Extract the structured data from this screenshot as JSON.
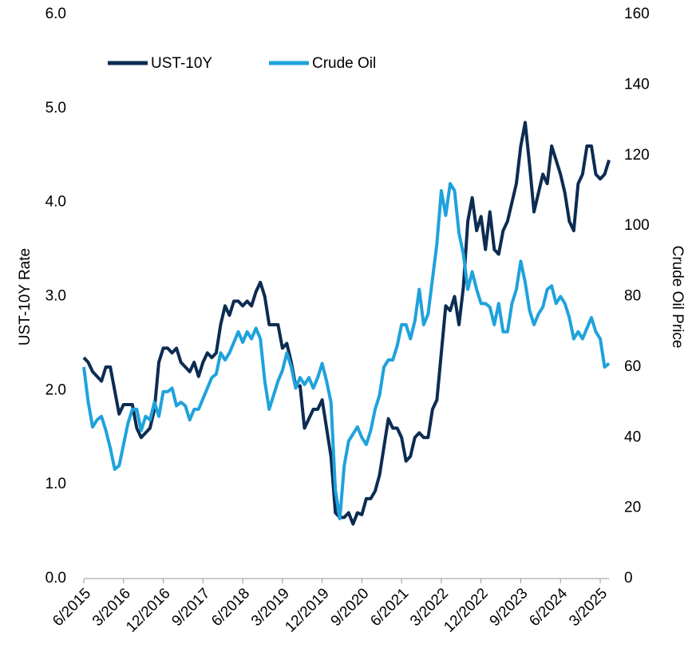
{
  "chart_data": {
    "type": "line",
    "categories": [
      "6/2015",
      null,
      null,
      null,
      null,
      null,
      null,
      null,
      null,
      "3/2016",
      null,
      null,
      null,
      null,
      null,
      null,
      null,
      null,
      "12/2016",
      null,
      null,
      null,
      null,
      null,
      null,
      null,
      null,
      "9/2017",
      null,
      null,
      null,
      null,
      null,
      null,
      null,
      null,
      "6/2018",
      null,
      null,
      null,
      null,
      null,
      null,
      null,
      null,
      "3/2019",
      null,
      null,
      null,
      null,
      null,
      null,
      null,
      null,
      "12/2019",
      null,
      null,
      null,
      null,
      null,
      null,
      null,
      null,
      "9/2020",
      null,
      null,
      null,
      null,
      null,
      null,
      null,
      null,
      "6/2021",
      null,
      null,
      null,
      null,
      null,
      null,
      null,
      null,
      "3/2022",
      null,
      null,
      null,
      null,
      null,
      null,
      null,
      null,
      "12/2022",
      null,
      null,
      null,
      null,
      null,
      null,
      null,
      null,
      "9/2023",
      null,
      null,
      null,
      null,
      null,
      null,
      null,
      null,
      "6/2024",
      null,
      null,
      null,
      null,
      null,
      null,
      null,
      null,
      "3/2025",
      null,
      null
    ],
    "series": [
      {
        "name": "UST-10Y",
        "color": "#0c2c52",
        "values": [
          2.35,
          2.3,
          2.2,
          2.15,
          2.1,
          2.25,
          2.25,
          2.0,
          1.75,
          1.85,
          1.85,
          1.85,
          1.6,
          1.5,
          1.55,
          1.6,
          1.8,
          2.3,
          2.45,
          2.45,
          2.4,
          2.45,
          2.3,
          2.25,
          2.2,
          2.3,
          2.15,
          2.3,
          2.4,
          2.35,
          2.4,
          2.7,
          2.9,
          2.8,
          2.95,
          2.95,
          2.9,
          2.95,
          2.9,
          3.05,
          3.15,
          3.0,
          2.7,
          2.7,
          2.7,
          2.45,
          2.5,
          2.3,
          2.05,
          2.05,
          1.6,
          1.7,
          1.8,
          1.8,
          1.9,
          1.6,
          1.3,
          0.7,
          0.65,
          0.65,
          0.7,
          0.58,
          0.7,
          0.68,
          0.85,
          0.85,
          0.93,
          1.1,
          1.4,
          1.7,
          1.6,
          1.6,
          1.5,
          1.25,
          1.3,
          1.5,
          1.55,
          1.5,
          1.5,
          1.8,
          1.9,
          2.4,
          2.9,
          2.85,
          3.0,
          2.7,
          3.1,
          3.8,
          4.05,
          3.7,
          3.85,
          3.5,
          3.9,
          3.5,
          3.45,
          3.7,
          3.8,
          4.0,
          4.2,
          4.6,
          4.85,
          4.4,
          3.9,
          4.1,
          4.3,
          4.2,
          4.6,
          4.45,
          4.3,
          4.1,
          3.8,
          3.7,
          4.2,
          4.3,
          4.6,
          4.6,
          4.3,
          4.25,
          4.3,
          4.45
        ]
      },
      {
        "name": "Crude Oil",
        "color": "#1fa2dc",
        "axis": "y2",
        "values": [
          60,
          50,
          43,
          45,
          46,
          42,
          37,
          31,
          32,
          38,
          44,
          48,
          48,
          42,
          46,
          45,
          50,
          46,
          53,
          53,
          54,
          49,
          50,
          49,
          45,
          48,
          48,
          51,
          54,
          57,
          58,
          64,
          62,
          64,
          67,
          70,
          67,
          70,
          68,
          71,
          68,
          56,
          48,
          52,
          56,
          59,
          64,
          60,
          54,
          57,
          55,
          57,
          54,
          57,
          61,
          56,
          50,
          25,
          17,
          32,
          39,
          41,
          43,
          40,
          38,
          42,
          48,
          52,
          60,
          62,
          62,
          66,
          72,
          72,
          68,
          73,
          82,
          72,
          75,
          85,
          95,
          110,
          103,
          112,
          110,
          98,
          92,
          82,
          87,
          82,
          78,
          78,
          77,
          72,
          78,
          70,
          70,
          78,
          82,
          90,
          84,
          76,
          72,
          75,
          77,
          82,
          83,
          78,
          80,
          78,
          74,
          68,
          70,
          68,
          71,
          74,
          70,
          68,
          60,
          61
        ]
      }
    ],
    "ylabel": "UST-10Y Rate",
    "y2label": "Crude Oil Price",
    "ylim": [
      0,
      6
    ],
    "yticks": [
      {
        "value": 0,
        "label": "0.0"
      },
      {
        "value": 1,
        "label": "1.0"
      },
      {
        "value": 2,
        "label": "2.0"
      },
      {
        "value": 3,
        "label": "3.0"
      },
      {
        "value": 4,
        "label": "4.0"
      },
      {
        "value": 5,
        "label": "5.0"
      },
      {
        "value": 6,
        "label": "6.0"
      }
    ],
    "y2lim": [
      0,
      160
    ],
    "y2ticks": [
      0,
      20,
      40,
      60,
      80,
      100,
      120,
      140,
      160
    ],
    "legend": "top-left"
  }
}
